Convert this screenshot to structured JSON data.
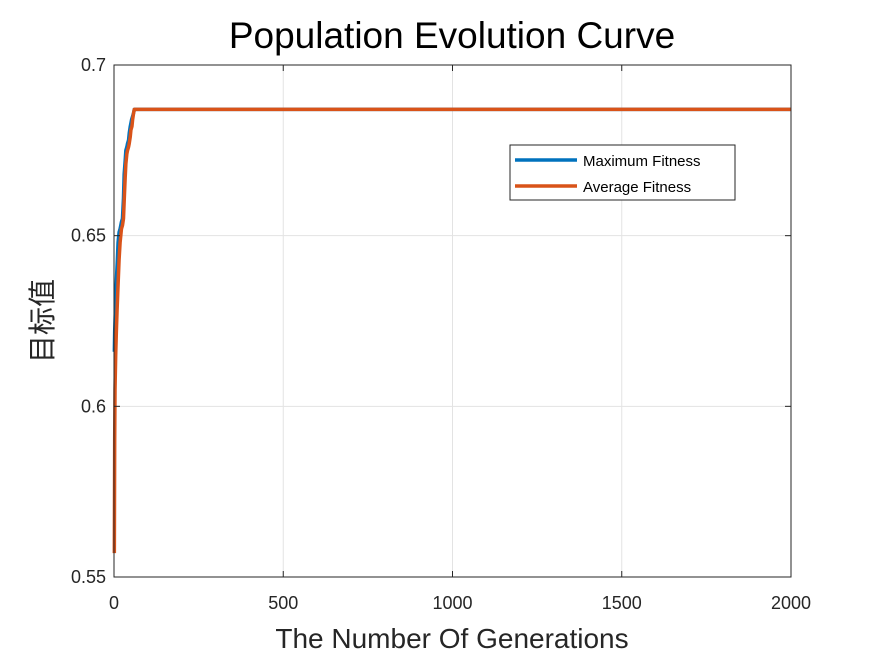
{
  "chart_data": {
    "type": "line",
    "title": "Population Evolution Curve",
    "xlabel": "The Number Of Generations",
    "ylabel": "目标值",
    "xlim": [
      0,
      2000
    ],
    "ylim": [
      0.55,
      0.7
    ],
    "xticks": [
      0,
      500,
      1000,
      1500,
      2000
    ],
    "xtick_labels": [
      "0",
      "500",
      "1000",
      "1500",
      "2000"
    ],
    "yticks": [
      0.55,
      0.6,
      0.65,
      0.7
    ],
    "ytick_labels": [
      "0.55",
      "0.6",
      "0.65",
      "0.7"
    ],
    "grid": true,
    "legend_position": "upper right",
    "series": [
      {
        "name": "Maximum Fitness",
        "color": "#0072BD",
        "x": [
          1,
          2,
          4,
          6,
          8,
          10,
          12,
          15,
          18,
          20,
          22,
          25,
          28,
          30,
          33,
          35,
          38,
          40,
          43,
          45,
          48,
          50,
          52,
          55,
          58,
          60,
          62,
          2000
        ],
        "y": [
          0.616,
          0.622,
          0.628,
          0.634,
          0.639,
          0.643,
          0.648,
          0.651,
          0.652,
          0.653,
          0.654,
          0.655,
          0.661,
          0.668,
          0.672,
          0.675,
          0.676,
          0.677,
          0.678,
          0.68,
          0.682,
          0.683,
          0.684,
          0.685,
          0.686,
          0.687,
          0.687,
          0.687
        ]
      },
      {
        "name": "Average Fitness",
        "color": "#D95319",
        "x": [
          1,
          2,
          3,
          5,
          7,
          9,
          11,
          13,
          15,
          18,
          20,
          22,
          25,
          28,
          30,
          33,
          35,
          38,
          40,
          43,
          45,
          48,
          50,
          53,
          55,
          58,
          60,
          62,
          2000
        ],
        "y": [
          0.557,
          0.59,
          0.605,
          0.615,
          0.622,
          0.628,
          0.633,
          0.638,
          0.643,
          0.648,
          0.65,
          0.652,
          0.653,
          0.655,
          0.66,
          0.667,
          0.671,
          0.674,
          0.675,
          0.676,
          0.677,
          0.679,
          0.681,
          0.682,
          0.684,
          0.686,
          0.687,
          0.687,
          0.687
        ]
      }
    ]
  }
}
